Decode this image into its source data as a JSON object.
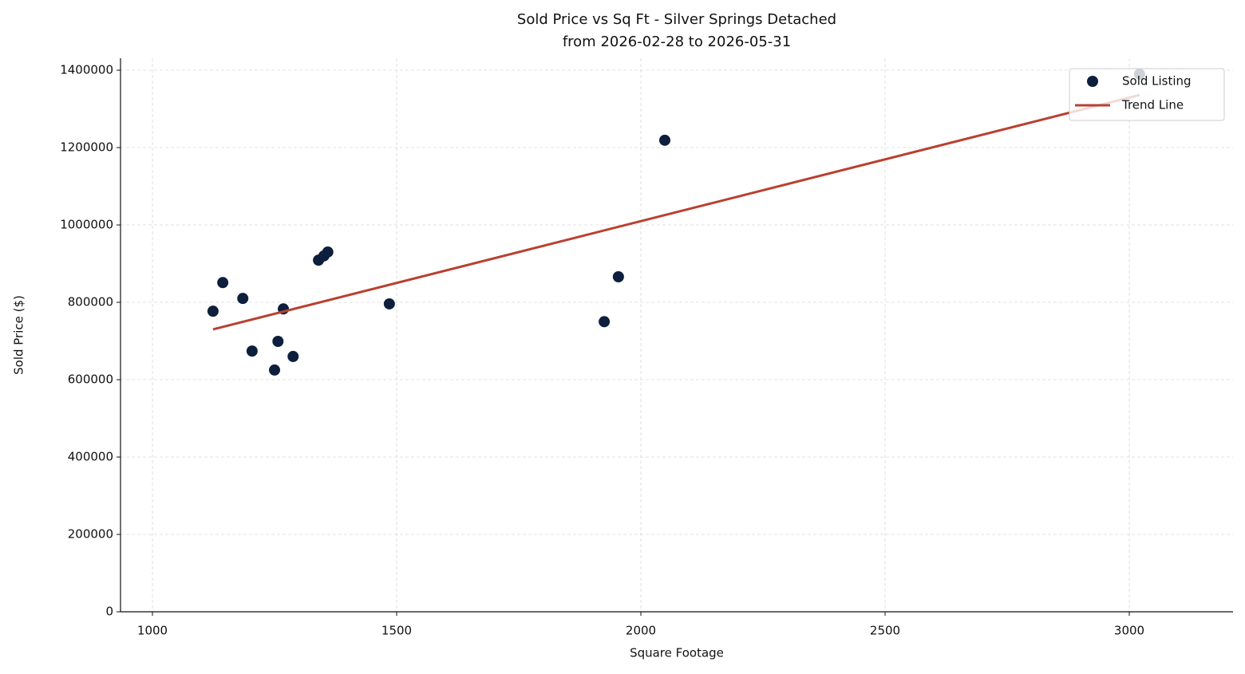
{
  "chart_data": {
    "type": "scatter",
    "title": "Sold Price vs Sq Ft - Silver Springs Detached",
    "subtitle": "from 2026-02-28 to 2026-05-31",
    "x_label": "Square Footage",
    "y_label": "Sold Price ($)",
    "xlim": [
      934.6,
      3212.4
    ],
    "ylim": [
      0,
      1431000
    ],
    "xticks": [
      1000,
      1500,
      2000,
      2500,
      3000
    ],
    "yticks": [
      0,
      200000,
      400000,
      600000,
      800000,
      1000000,
      1200000,
      1400000
    ],
    "grid": true,
    "legend": "upper right",
    "series": [
      {
        "name": "Sold Listing",
        "type": "scatter",
        "color": "#0d1f3c",
        "x": [
          1124,
          1144,
          1185,
          1204,
          1250,
          1257,
          1268,
          1288,
          1340,
          1351,
          1359,
          1485,
          1925,
          1954,
          2049,
          3021
        ],
        "values": [
          777000,
          851000,
          810000,
          674000,
          625000,
          699000,
          783000,
          660000,
          909000,
          920000,
          930000,
          796000,
          750000,
          866000,
          1219000,
          1390000
        ]
      },
      {
        "name": "Trend Line",
        "type": "line",
        "color": "#b94030",
        "x": [
          1124,
          3021
        ],
        "values": [
          730000,
          1336000
        ]
      }
    ]
  }
}
